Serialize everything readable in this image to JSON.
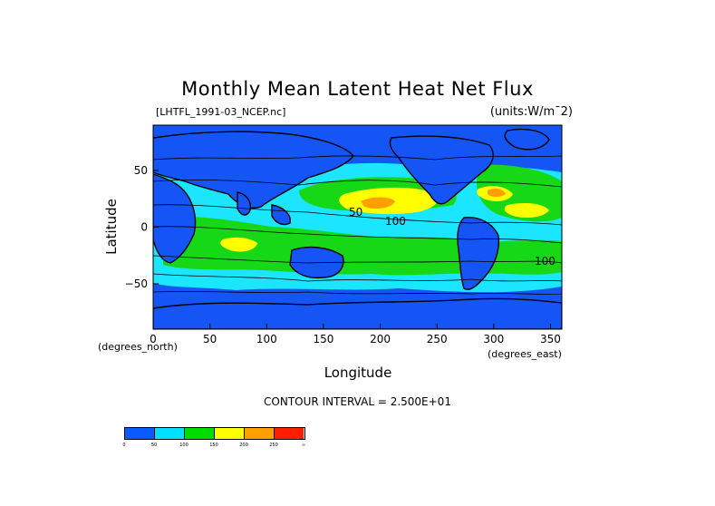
{
  "chart_data": {
    "type": "heatmap",
    "title": "Monthly Mean Latent Heat Net Flux",
    "subtitle_left": "[LHTFL_1991-03_NCEP.nc]",
    "subtitle_right": "(units:W/m¯2)",
    "xlabel": "Longitude",
    "ylabel": "Latitude",
    "x_unit_label": "(degrees_east)",
    "y_unit_label": "(degrees_north)",
    "xlim": [
      0,
      360
    ],
    "ylim": [
      -90,
      90
    ],
    "x_ticks": [
      0,
      50,
      100,
      150,
      200,
      250,
      300,
      350
    ],
    "y_ticks": [
      -50,
      0,
      50
    ],
    "contour_interval_text": "CONTOUR INTERVAL = 2.500E+01",
    "contour_labels": [
      "50",
      "100"
    ],
    "colorbar": {
      "colors": [
        "#0a5aff",
        "#00e0ff",
        "#00dc00",
        "#ffff00",
        "#ffa000",
        "#ff1e00"
      ],
      "levels": [
        "0",
        "50",
        "100",
        "150",
        "200",
        "250",
        "∞"
      ]
    }
  },
  "colors": {
    "ocean_low": "#1655f5",
    "ocean_mid": "#1ce5ff",
    "ocean_high": "#17d817",
    "flux_200": "#ffff00",
    "flux_250": "#ffa000",
    "flux_max": "#ff1e00",
    "land": "#1655f5"
  }
}
